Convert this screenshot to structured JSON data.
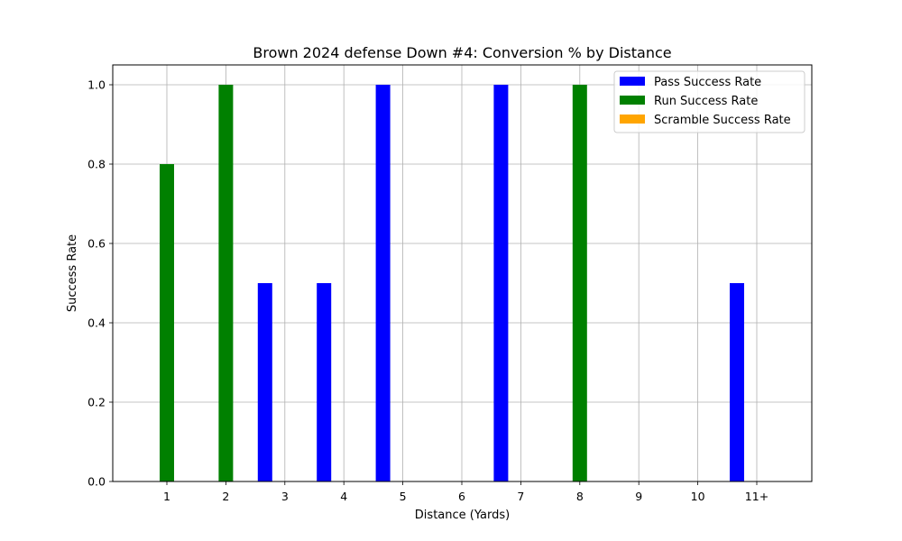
{
  "chart_data": {
    "type": "bar",
    "title": "Brown 2024 defense Down #4: Conversion % by Distance",
    "xlabel": "Distance (Yards)",
    "ylabel": "Success Rate",
    "categories": [
      "1",
      "2",
      "3",
      "4",
      "5",
      "6",
      "7",
      "8",
      "9",
      "10",
      "11+"
    ],
    "series": [
      {
        "name": "Pass Success Rate",
        "color": "#0000ff",
        "values": [
          0,
          0,
          0.5,
          0.5,
          1.0,
          0,
          1.0,
          0,
          0,
          0,
          0.5
        ]
      },
      {
        "name": "Run Success Rate",
        "color": "#008000",
        "values": [
          0.8,
          1.0,
          0,
          0,
          0,
          0,
          0,
          1.0,
          0,
          0,
          0
        ]
      },
      {
        "name": "Scramble Success Rate",
        "color": "#ffa500",
        "values": [
          0,
          0,
          0,
          0,
          0,
          0,
          0,
          0,
          0,
          0,
          0
        ]
      }
    ],
    "ylim": [
      0,
      1.05
    ],
    "yticks": [
      "0.0",
      "0.2",
      "0.4",
      "0.6",
      "0.8",
      "1.0"
    ],
    "grid": true,
    "legend_position": "top-right"
  }
}
